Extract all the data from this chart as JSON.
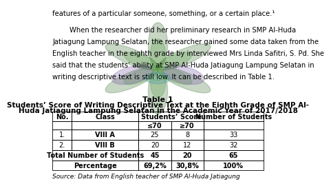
{
  "bg_color": "#ffffff",
  "para_text_line1": "features of a particular someone, something, or a certain place.¹",
  "para_indent": "        When the researcher did her preliminary research in SMP Al-Huda",
  "para_lines": [
    "Jatiagung Lampung Selatan, the researcher gained some data taken from the",
    "English teacher in the eighth grade by interviewed Mrs Linda Safitri, S. Pd. She",
    "said that the students’ ability at SMP Al-Huda Jatiagung Lampung Selatan in",
    "writing descriptive text is still low. It can be described in Table 1."
  ],
  "title1": "Table 1",
  "title2_line1": "Students’ Score of Writing Descriptive Text at the Eighth Grade of SMP Al-",
  "title2_line2": "Huda Jatiagung Lampung Selatan in the Academic Year of 2017/2018",
  "col_headers": [
    "No.",
    "Class",
    "Students’ Score",
    "Number of Students"
  ],
  "sub_headers": [
    "≤70",
    "≥70"
  ],
  "rows": [
    [
      "1.",
      "VIII A",
      "25",
      "8",
      "33"
    ],
    [
      "2.",
      "VIII B",
      "20",
      "12",
      "32"
    ],
    [
      "Total Number of Students",
      "45",
      "20",
      "65"
    ],
    [
      "Percentage",
      "69,2%",
      "30,8%",
      "100%"
    ]
  ],
  "source": "Source: Data from English teacher of SMP Al-Huda Jatiagung",
  "font_size_body": 7.2,
  "font_size_table": 7.0,
  "font_size_title": 8.0,
  "font_size_source": 6.5
}
